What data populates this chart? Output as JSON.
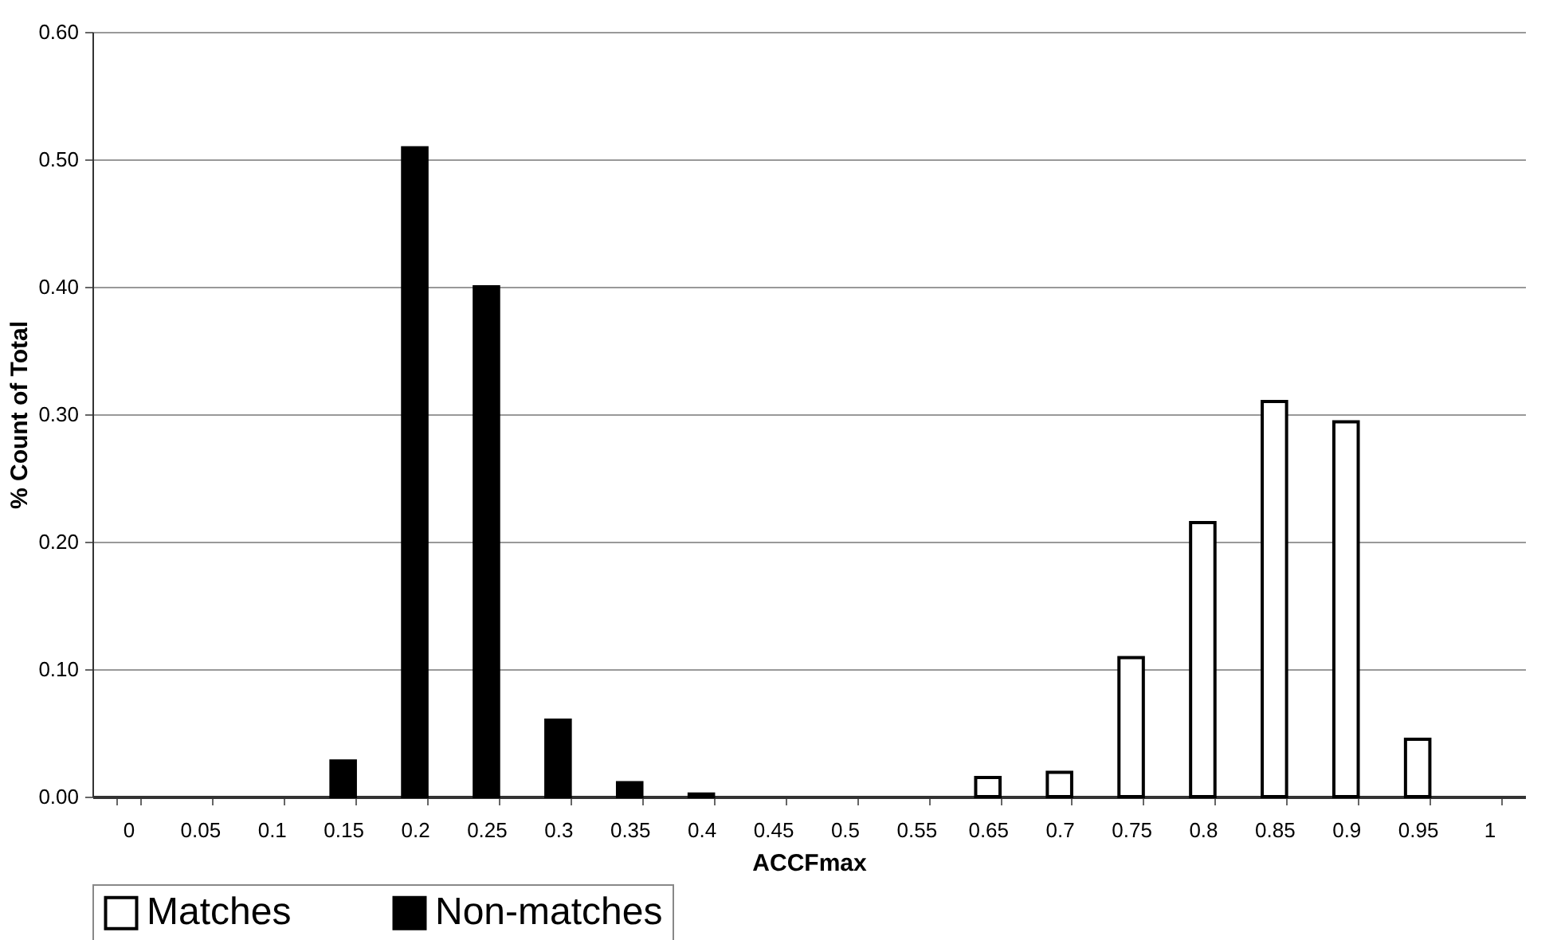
{
  "chart_data": {
    "type": "bar",
    "xlabel": "ACCFmax",
    "ylabel": "% Count of Total",
    "categories": [
      "0",
      "0.05",
      "0.1",
      "0.15",
      "0.2",
      "0.25",
      "0.3",
      "0.35",
      "0.4",
      "0.45",
      "0.5",
      "0.55",
      "0.65",
      "0.7",
      "0.75",
      "0.8",
      "0.85",
      "0.9",
      "0.95",
      "1"
    ],
    "series": [
      {
        "name": "Matches",
        "color": "#ffffff",
        "values": [
          null,
          null,
          null,
          null,
          null,
          null,
          null,
          null,
          null,
          null,
          null,
          null,
          0.015,
          0.019,
          0.109,
          0.215,
          0.31,
          0.294,
          0.045,
          null
        ]
      },
      {
        "name": "Non-matches",
        "color": "#000000",
        "values": [
          null,
          null,
          null,
          0.028,
          0.509,
          0.4,
          0.06,
          0.011,
          0.002,
          null,
          null,
          null,
          null,
          null,
          null,
          null,
          null,
          null,
          null,
          null
        ]
      }
    ],
    "ylim": [
      0,
      0.6
    ],
    "yticks": [
      {
        "value": 0,
        "label": "0.00"
      },
      {
        "value": 0.1,
        "label": "0.10"
      },
      {
        "value": 0.2,
        "label": "0.20"
      },
      {
        "value": 0.3,
        "label": "0.30"
      },
      {
        "value": 0.4,
        "label": "0.40"
      },
      {
        "value": 0.5,
        "label": "0.50"
      },
      {
        "value": 0.6,
        "label": "0.60"
      }
    ],
    "grid": "y",
    "legend": "bottom"
  }
}
